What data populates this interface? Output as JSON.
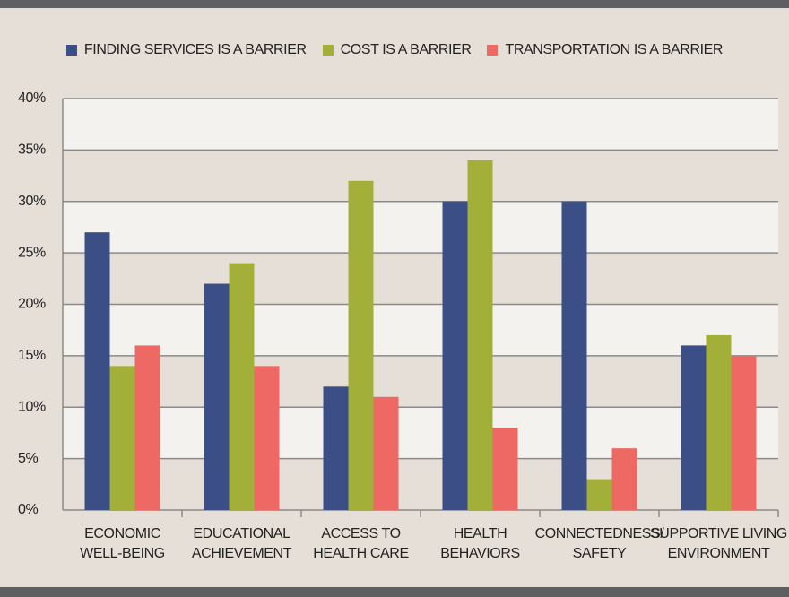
{
  "chart_data": {
    "type": "bar",
    "categories": [
      "ECONOMIC\nWELL-BEING",
      "EDUCATIONAL\nACHIEVEMENT",
      "ACCESS TO\nHEALTH CARE",
      "HEALTH\nBEHAVIORS",
      "CONNECTEDNESS/\nSAFETY",
      "SUPPORTIVE LIVING\nENVIRONMENT"
    ],
    "series": [
      {
        "name": "FINDING SERVICES IS A BARRIER",
        "color": "#3b4e86",
        "values": [
          27,
          22,
          12,
          30,
          30,
          16
        ]
      },
      {
        "name": "COST IS A BARRIER",
        "color": "#a2b03a",
        "values": [
          14,
          24,
          32,
          34,
          3,
          17
        ]
      },
      {
        "name": "TRANSPORTATION IS A BARRIER",
        "color": "#ee6963",
        "values": [
          16,
          14,
          11,
          8,
          6,
          15
        ]
      }
    ],
    "ylim": [
      0,
      40
    ],
    "yticks": [
      {
        "value": 0,
        "label": "0%"
      },
      {
        "value": 5,
        "label": "5%"
      },
      {
        "value": 10,
        "label": "10%"
      },
      {
        "value": 15,
        "label": "15%"
      },
      {
        "value": 20,
        "label": "20%"
      },
      {
        "value": 25,
        "label": "25%"
      },
      {
        "value": 30,
        "label": "30%"
      },
      {
        "value": 35,
        "label": "35%"
      },
      {
        "value": 40,
        "label": "40%"
      }
    ],
    "grid": true,
    "legend": "top"
  }
}
